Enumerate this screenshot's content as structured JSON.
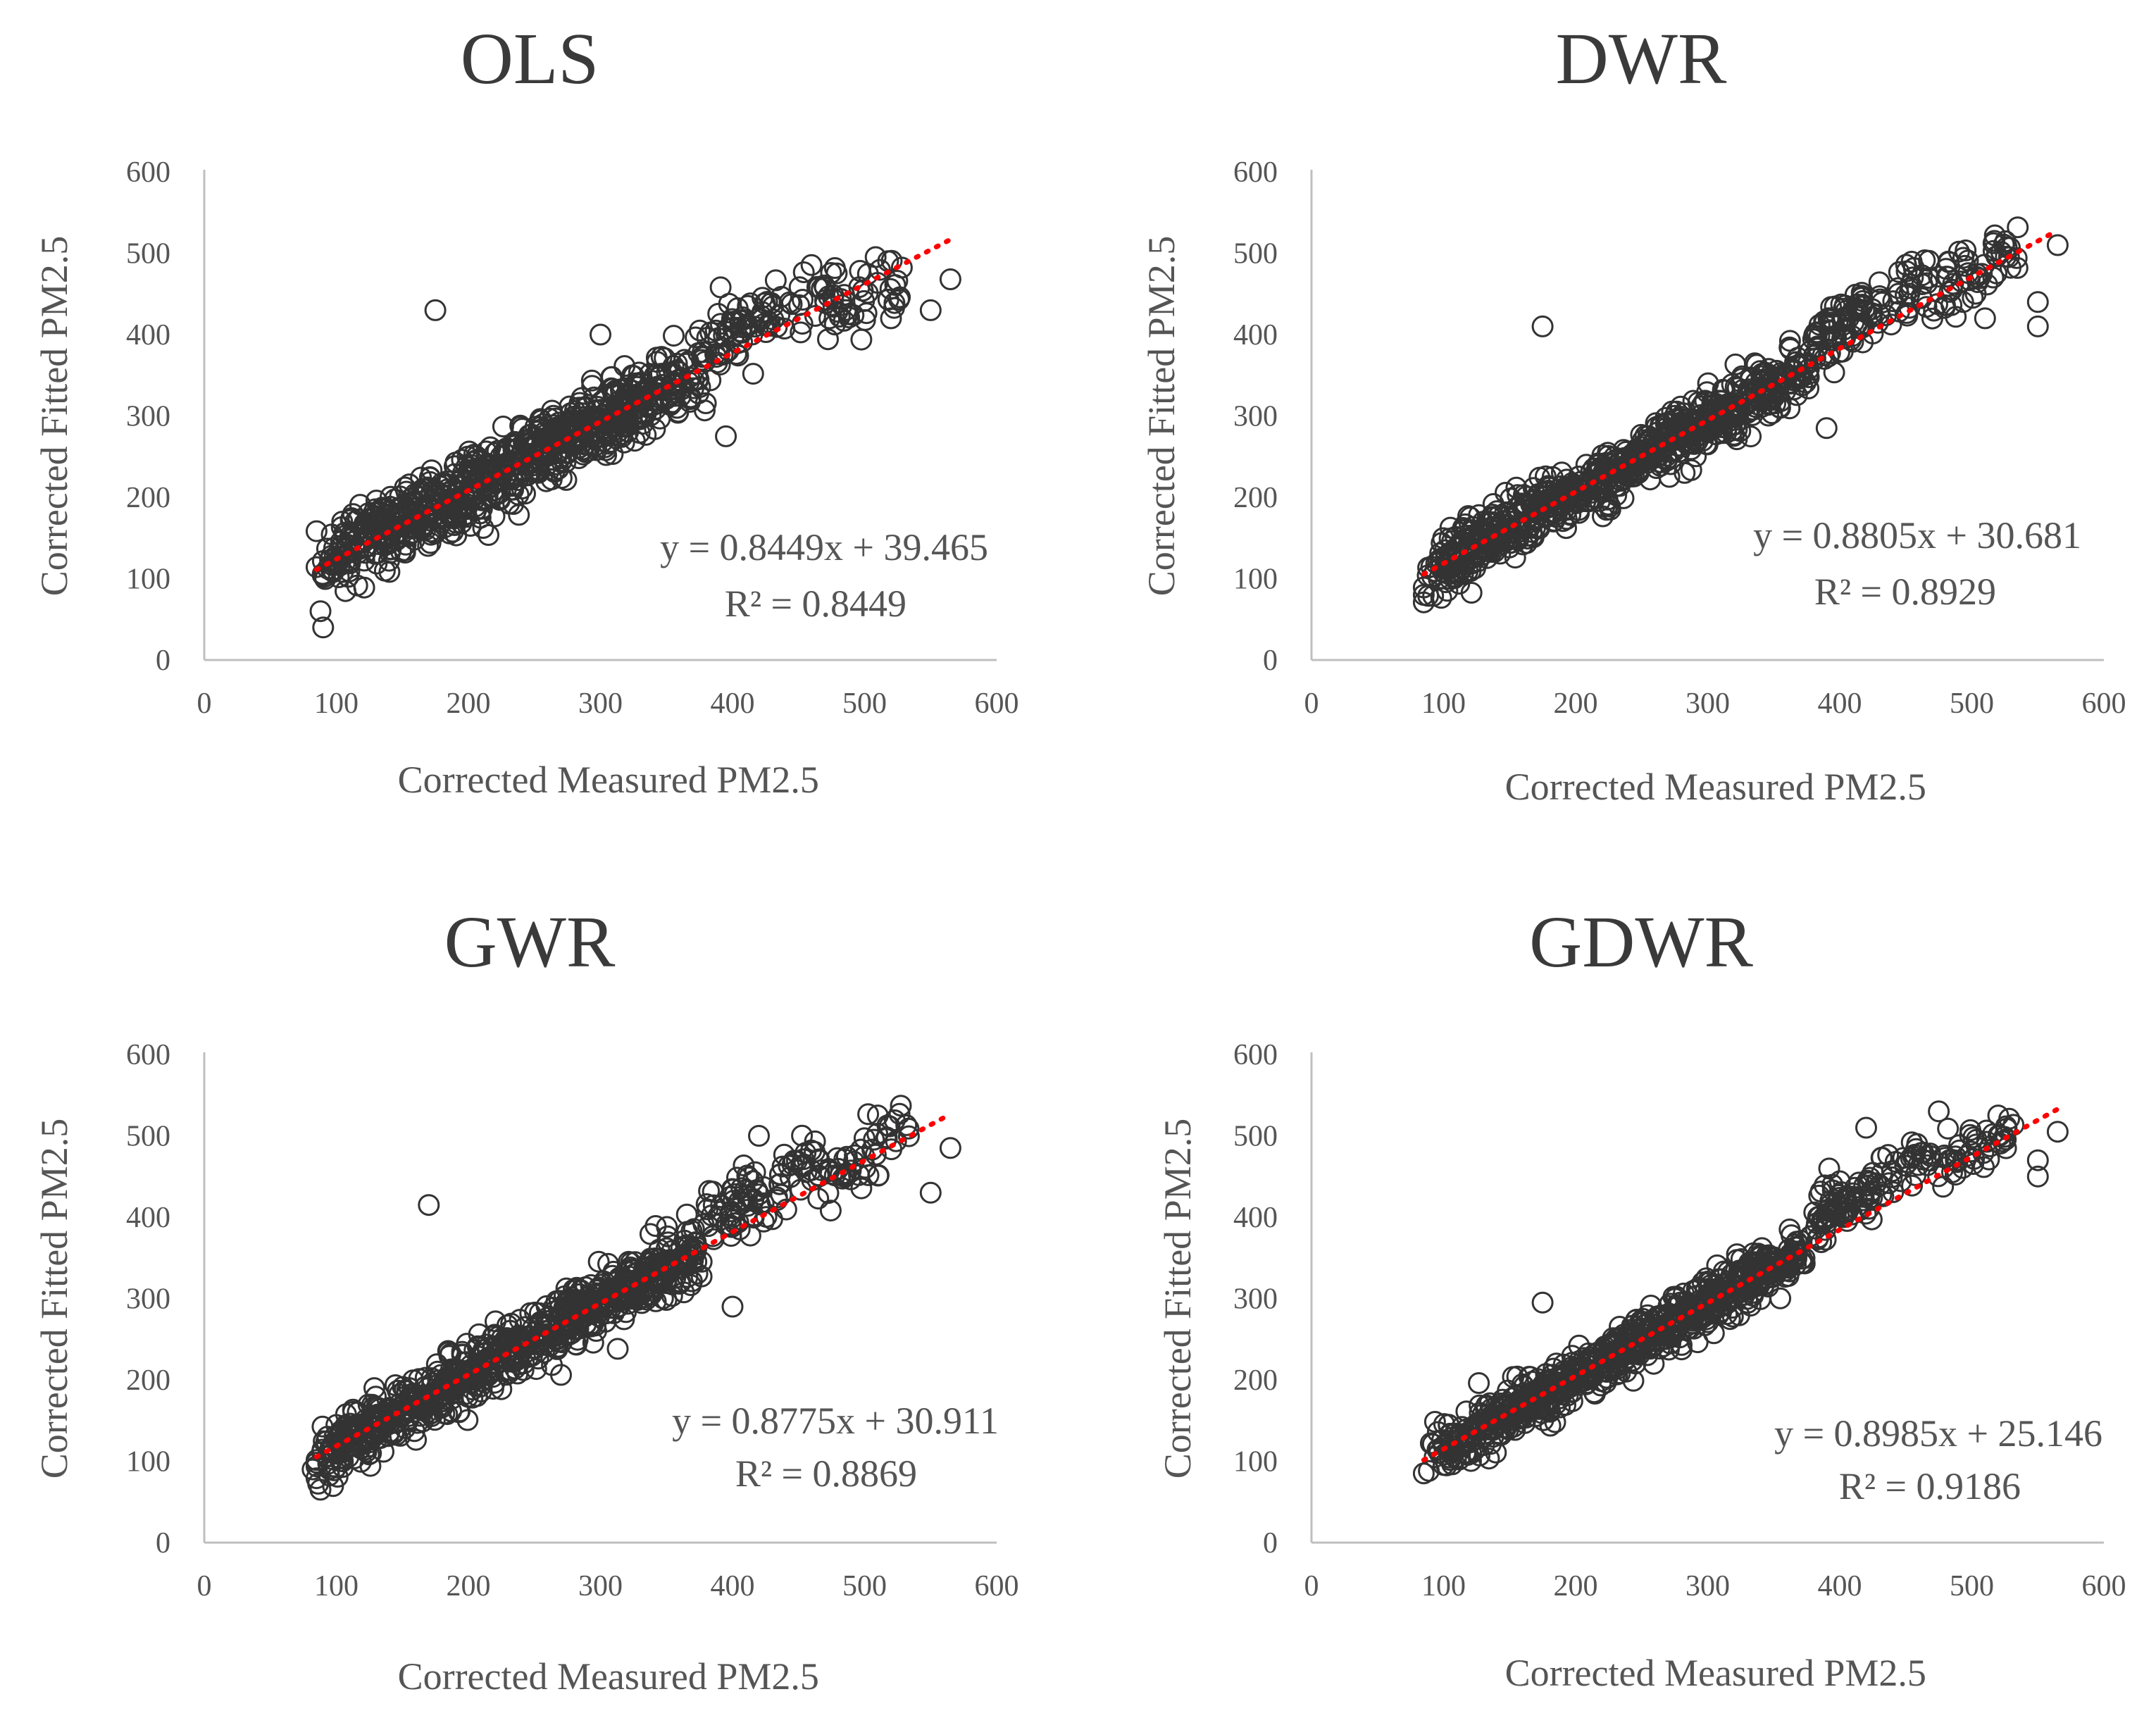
{
  "chart_data": [
    {
      "type": "scatter",
      "title": "OLS",
      "xlabel": "Corrected Measured PM2.5",
      "ylabel": "Corrected Fitted  PM2.5",
      "xlim": [
        0,
        600
      ],
      "ylim": [
        0,
        600
      ],
      "xticks": [
        "0",
        "100",
        "200",
        "300",
        "400",
        "500",
        "600"
      ],
      "yticks": [
        "0",
        "100",
        "200",
        "300",
        "400",
        "500",
        "600"
      ],
      "grid": false,
      "trendline": {
        "slope": 0.8449,
        "intercept": 39.465,
        "x_range": [
          85,
          565
        ],
        "color": "#ff0000",
        "style": "dotted"
      },
      "equation_text": "y = 0.8449x + 39.465",
      "r2_text": "R² = 0.8449",
      "outliers": [
        [
          175,
          430
        ],
        [
          88,
          60
        ],
        [
          90,
          40
        ],
        [
          300,
          400
        ],
        [
          395,
          275
        ],
        [
          520,
          420
        ],
        [
          550,
          430
        ],
        [
          565,
          468
        ]
      ],
      "series": [
        {
          "n_points": 900,
          "x_range": [
            85,
            565
          ],
          "noise_sd": 22
        }
      ]
    },
    {
      "type": "scatter",
      "title": "DWR",
      "xlabel": "Corrected Measured PM2.5",
      "ylabel": "Corrected Fitted  PM2.5",
      "xlim": [
        0,
        600
      ],
      "ylim": [
        0,
        600
      ],
      "xticks": [
        "0",
        "100",
        "200",
        "300",
        "400",
        "500",
        "600"
      ],
      "yticks": [
        "0",
        "100",
        "200",
        "300",
        "400",
        "500",
        "600"
      ],
      "grid": false,
      "trendline": {
        "slope": 0.8805,
        "intercept": 30.681,
        "x_range": [
          85,
          565
        ],
        "color": "#ff0000",
        "style": "dotted"
      },
      "equation_text": "y = 0.8805x + 30.681",
      "r2_text": "R² = 0.8929",
      "outliers": [
        [
          175,
          410
        ],
        [
          85,
          80
        ],
        [
          390,
          285
        ],
        [
          510,
          420
        ],
        [
          550,
          440
        ],
        [
          550,
          410
        ],
        [
          565,
          510
        ]
      ],
      "series": [
        {
          "n_points": 900,
          "x_range": [
            85,
            565
          ],
          "noise_sd": 18
        }
      ]
    },
    {
      "type": "scatter",
      "title": "GWR",
      "xlabel": "Corrected Measured PM2.5",
      "ylabel": "Corrected Fitted  PM2.5",
      "xlim": [
        0,
        600
      ],
      "ylim": [
        0,
        600
      ],
      "xticks": [
        "0",
        "100",
        "200",
        "300",
        "400",
        "500",
        "600"
      ],
      "yticks": [
        "0",
        "100",
        "200",
        "300",
        "400",
        "500",
        "600"
      ],
      "grid": false,
      "trendline": {
        "slope": 0.8775,
        "intercept": 30.911,
        "x_range": [
          85,
          565
        ],
        "color": "#ff0000",
        "style": "dotted"
      },
      "equation_text": "y = 0.8775x + 30.911",
      "r2_text": "R² = 0.8869",
      "outliers": [
        [
          170,
          415
        ],
        [
          88,
          65
        ],
        [
          82,
          90
        ],
        [
          400,
          290
        ],
        [
          420,
          500
        ],
        [
          550,
          430
        ],
        [
          565,
          485
        ],
        [
          510,
          525
        ]
      ],
      "series": [
        {
          "n_points": 900,
          "x_range": [
            85,
            565
          ],
          "noise_sd": 19
        }
      ]
    },
    {
      "type": "scatter",
      "title": "GDWR",
      "xlabel": "Corrected Measured PM2.5",
      "ylabel": "Corrected Fitted  PM2.5",
      "xlim": [
        0,
        600
      ],
      "ylim": [
        0,
        600
      ],
      "xticks": [
        "0",
        "100",
        "200",
        "300",
        "400",
        "500",
        "600"
      ],
      "yticks": [
        "0",
        "100",
        "200",
        "300",
        "400",
        "500",
        "600"
      ],
      "grid": false,
      "trendline": {
        "slope": 0.8985,
        "intercept": 25.146,
        "x_range": [
          85,
          565
        ],
        "color": "#ff0000",
        "style": "dotted"
      },
      "equation_text": "y = 0.8985x + 25.146",
      "r2_text": "R² = 0.9186",
      "outliers": [
        [
          175,
          295
        ],
        [
          85,
          85
        ],
        [
          420,
          510
        ],
        [
          475,
          530
        ],
        [
          520,
          525
        ],
        [
          550,
          450
        ],
        [
          550,
          470
        ],
        [
          565,
          505
        ]
      ],
      "series": [
        {
          "n_points": 900,
          "x_range": [
            85,
            565
          ],
          "noise_sd": 16
        }
      ]
    }
  ]
}
